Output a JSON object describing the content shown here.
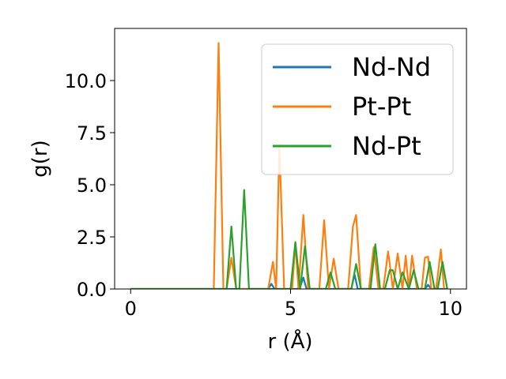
{
  "chart_data": {
    "type": "line",
    "xlabel": "r (Å)",
    "ylabel": "g(r)",
    "xlim": [
      -0.5,
      10.5
    ],
    "ylim": [
      0,
      12.5
    ],
    "xticks": [
      0,
      5,
      10
    ],
    "xtick_labels": [
      "0",
      "5",
      "10"
    ],
    "yticks": [
      0,
      2.5,
      5,
      7.5,
      10
    ],
    "ytick_labels": [
      "0.0",
      "2.5",
      "5.0",
      "7.5",
      "10.0"
    ],
    "grid": false,
    "legend_position": "upper-right",
    "series": [
      {
        "name": "Nd-Nd",
        "color": "#1f77b4",
        "x": [
          0,
          4.3,
          4.4,
          4.5,
          5.2,
          5.3,
          5.4,
          5.5,
          6.9,
          7.0,
          7.1,
          9.2,
          9.3,
          9.4,
          9.9
        ],
        "y": [
          0,
          0,
          0.25,
          0,
          0,
          0.1,
          0.55,
          0,
          0,
          0.7,
          0,
          0,
          0.2,
          0,
          0
        ]
      },
      {
        "name": "Pt-Pt",
        "color": "#ff7f0e",
        "x": [
          0,
          2.6,
          2.75,
          2.9,
          3.0,
          3.15,
          3.3,
          4.3,
          4.45,
          4.55,
          4.65,
          4.8,
          5.05,
          5.15,
          5.25,
          5.4,
          5.55,
          5.9,
          6.05,
          6.2,
          6.35,
          6.5,
          6.8,
          6.95,
          7.05,
          7.2,
          7.45,
          7.6,
          7.75,
          7.9,
          8.05,
          8.2,
          8.35,
          8.5,
          8.6,
          8.7,
          8.8,
          8.95,
          9.1,
          9.2,
          9.3,
          9.4,
          9.55,
          9.7,
          9.8
        ],
        "y": [
          0,
          0,
          11.8,
          0,
          0,
          1.5,
          0,
          0,
          1.3,
          0,
          6.9,
          0,
          0,
          2.2,
          0,
          3.55,
          0,
          0,
          3.3,
          0,
          1.45,
          0,
          0,
          3.0,
          3.55,
          0,
          0,
          2.0,
          0,
          0,
          1.8,
          0,
          1.7,
          0,
          1.6,
          0,
          1.6,
          0,
          0,
          1.5,
          1.55,
          0,
          0,
          1.9,
          0
        ]
      },
      {
        "name": "Nd-Pt",
        "color": "#2ca02c",
        "x": [
          0,
          3.0,
          3.15,
          3.3,
          3.4,
          3.55,
          3.7,
          5.0,
          5.15,
          5.3,
          5.45,
          5.6,
          6.1,
          6.25,
          6.4,
          6.9,
          7.05,
          7.2,
          7.5,
          7.65,
          7.8,
          7.95,
          8.1,
          8.2,
          8.35,
          8.5,
          8.7,
          8.85,
          9.0,
          9.2,
          9.35,
          9.5,
          9.6,
          9.75,
          9.9
        ],
        "y": [
          0,
          0,
          3.0,
          0,
          0,
          4.75,
          0,
          0,
          2.25,
          0,
          2.05,
          0,
          0,
          0.8,
          0,
          0,
          1.2,
          0,
          0,
          2.15,
          0,
          0,
          0.9,
          0.9,
          0,
          0.8,
          0,
          0.9,
          0,
          0,
          1.3,
          0,
          0,
          1.3,
          0
        ]
      }
    ]
  }
}
